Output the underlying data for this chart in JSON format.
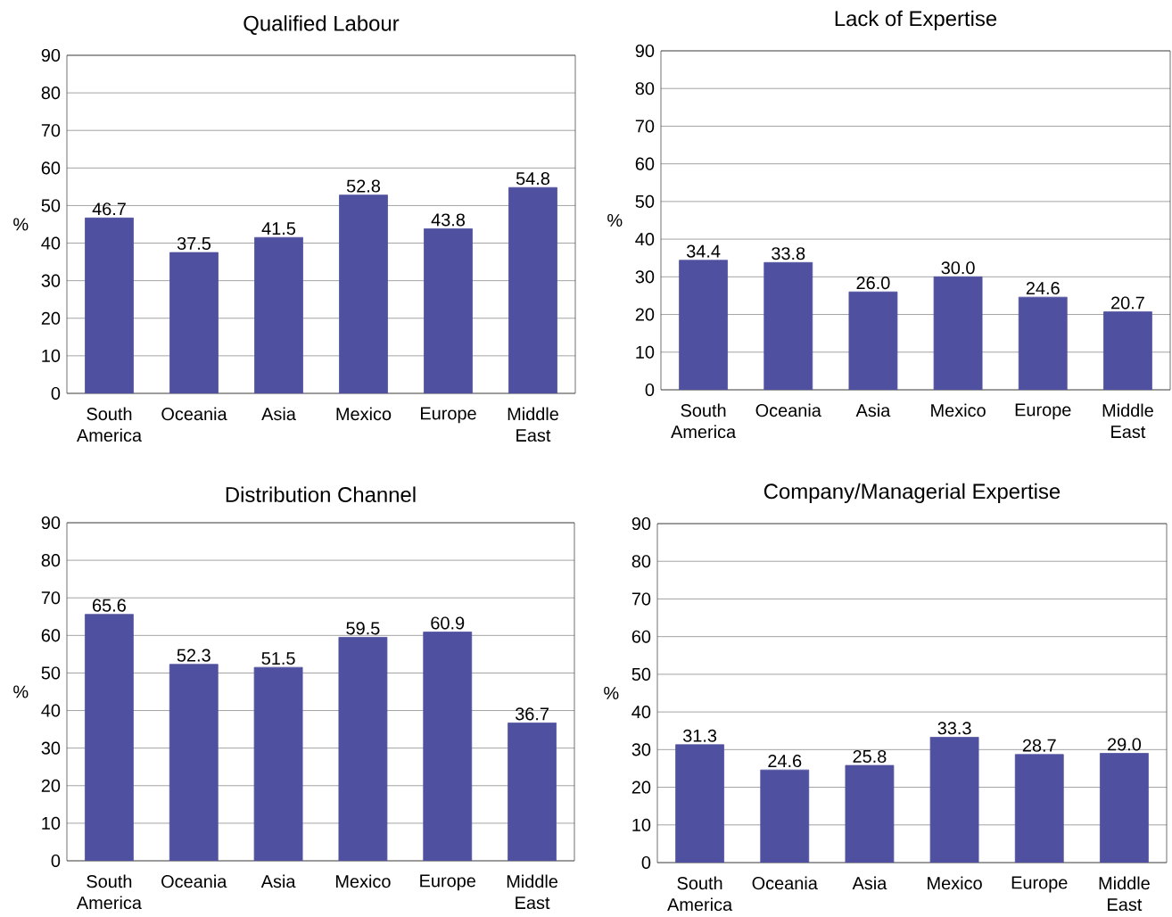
{
  "chart_data": [
    {
      "type": "bar",
      "title": "Qualified Labour",
      "ylabel": "%",
      "categories": [
        "South America",
        "Oceania",
        "Asia",
        "Mexico",
        "Europe",
        "Middle East"
      ],
      "values": [
        46.7,
        37.5,
        41.5,
        52.8,
        43.8,
        54.8
      ],
      "value_labels": [
        "46.7",
        "37.5",
        "41.5",
        "52.8",
        "43.8",
        "54.8"
      ],
      "color": "#5050a0",
      "ylim": [
        0,
        90
      ],
      "yticks": [
        0,
        10,
        20,
        30,
        40,
        50,
        60,
        70,
        80,
        90
      ],
      "grid": "y"
    },
    {
      "type": "bar",
      "title": "Lack of Expertise",
      "ylabel": "%",
      "categories": [
        "South America",
        "Oceania",
        "Asia",
        "Mexico",
        "Europe",
        "Middle East"
      ],
      "values": [
        34.4,
        33.8,
        26.0,
        30.0,
        24.6,
        20.7
      ],
      "value_labels": [
        "34.4",
        "33.8",
        "26.0",
        "30.0",
        "24.6",
        "20.7"
      ],
      "color": "#5050a0",
      "ylim": [
        0,
        90
      ],
      "yticks": [
        0,
        10,
        20,
        30,
        40,
        50,
        60,
        70,
        80,
        90
      ],
      "grid": "y"
    },
    {
      "type": "bar",
      "title": "Distribution Channel",
      "ylabel": "%",
      "categories": [
        "South America",
        "Oceania",
        "Asia",
        "Mexico",
        "Europe",
        "Middle East"
      ],
      "values": [
        65.6,
        52.3,
        51.5,
        59.5,
        60.9,
        36.7
      ],
      "value_labels": [
        "65.6",
        "52.3",
        "51.5",
        "59.5",
        "60.9",
        "36.7"
      ],
      "color": "#5050a0",
      "ylim": [
        0,
        90
      ],
      "yticks": [
        0,
        10,
        20,
        30,
        40,
        50,
        60,
        70,
        80,
        90
      ],
      "grid": "y"
    },
    {
      "type": "bar",
      "title": "Company/Managerial Expertise",
      "ylabel": "%",
      "categories": [
        "South America",
        "Oceania",
        "Asia",
        "Mexico",
        "Europe",
        "Middle East"
      ],
      "values": [
        31.3,
        24.6,
        25.8,
        33.3,
        28.7,
        29.0
      ],
      "value_labels": [
        "31.3",
        "24.6",
        "25.8",
        "33.3",
        "28.7",
        "29.0"
      ],
      "color": "#5050a0",
      "ylim": [
        0,
        90
      ],
      "yticks": [
        0,
        10,
        20,
        30,
        40,
        50,
        60,
        70,
        80,
        90
      ],
      "grid": "y"
    }
  ]
}
